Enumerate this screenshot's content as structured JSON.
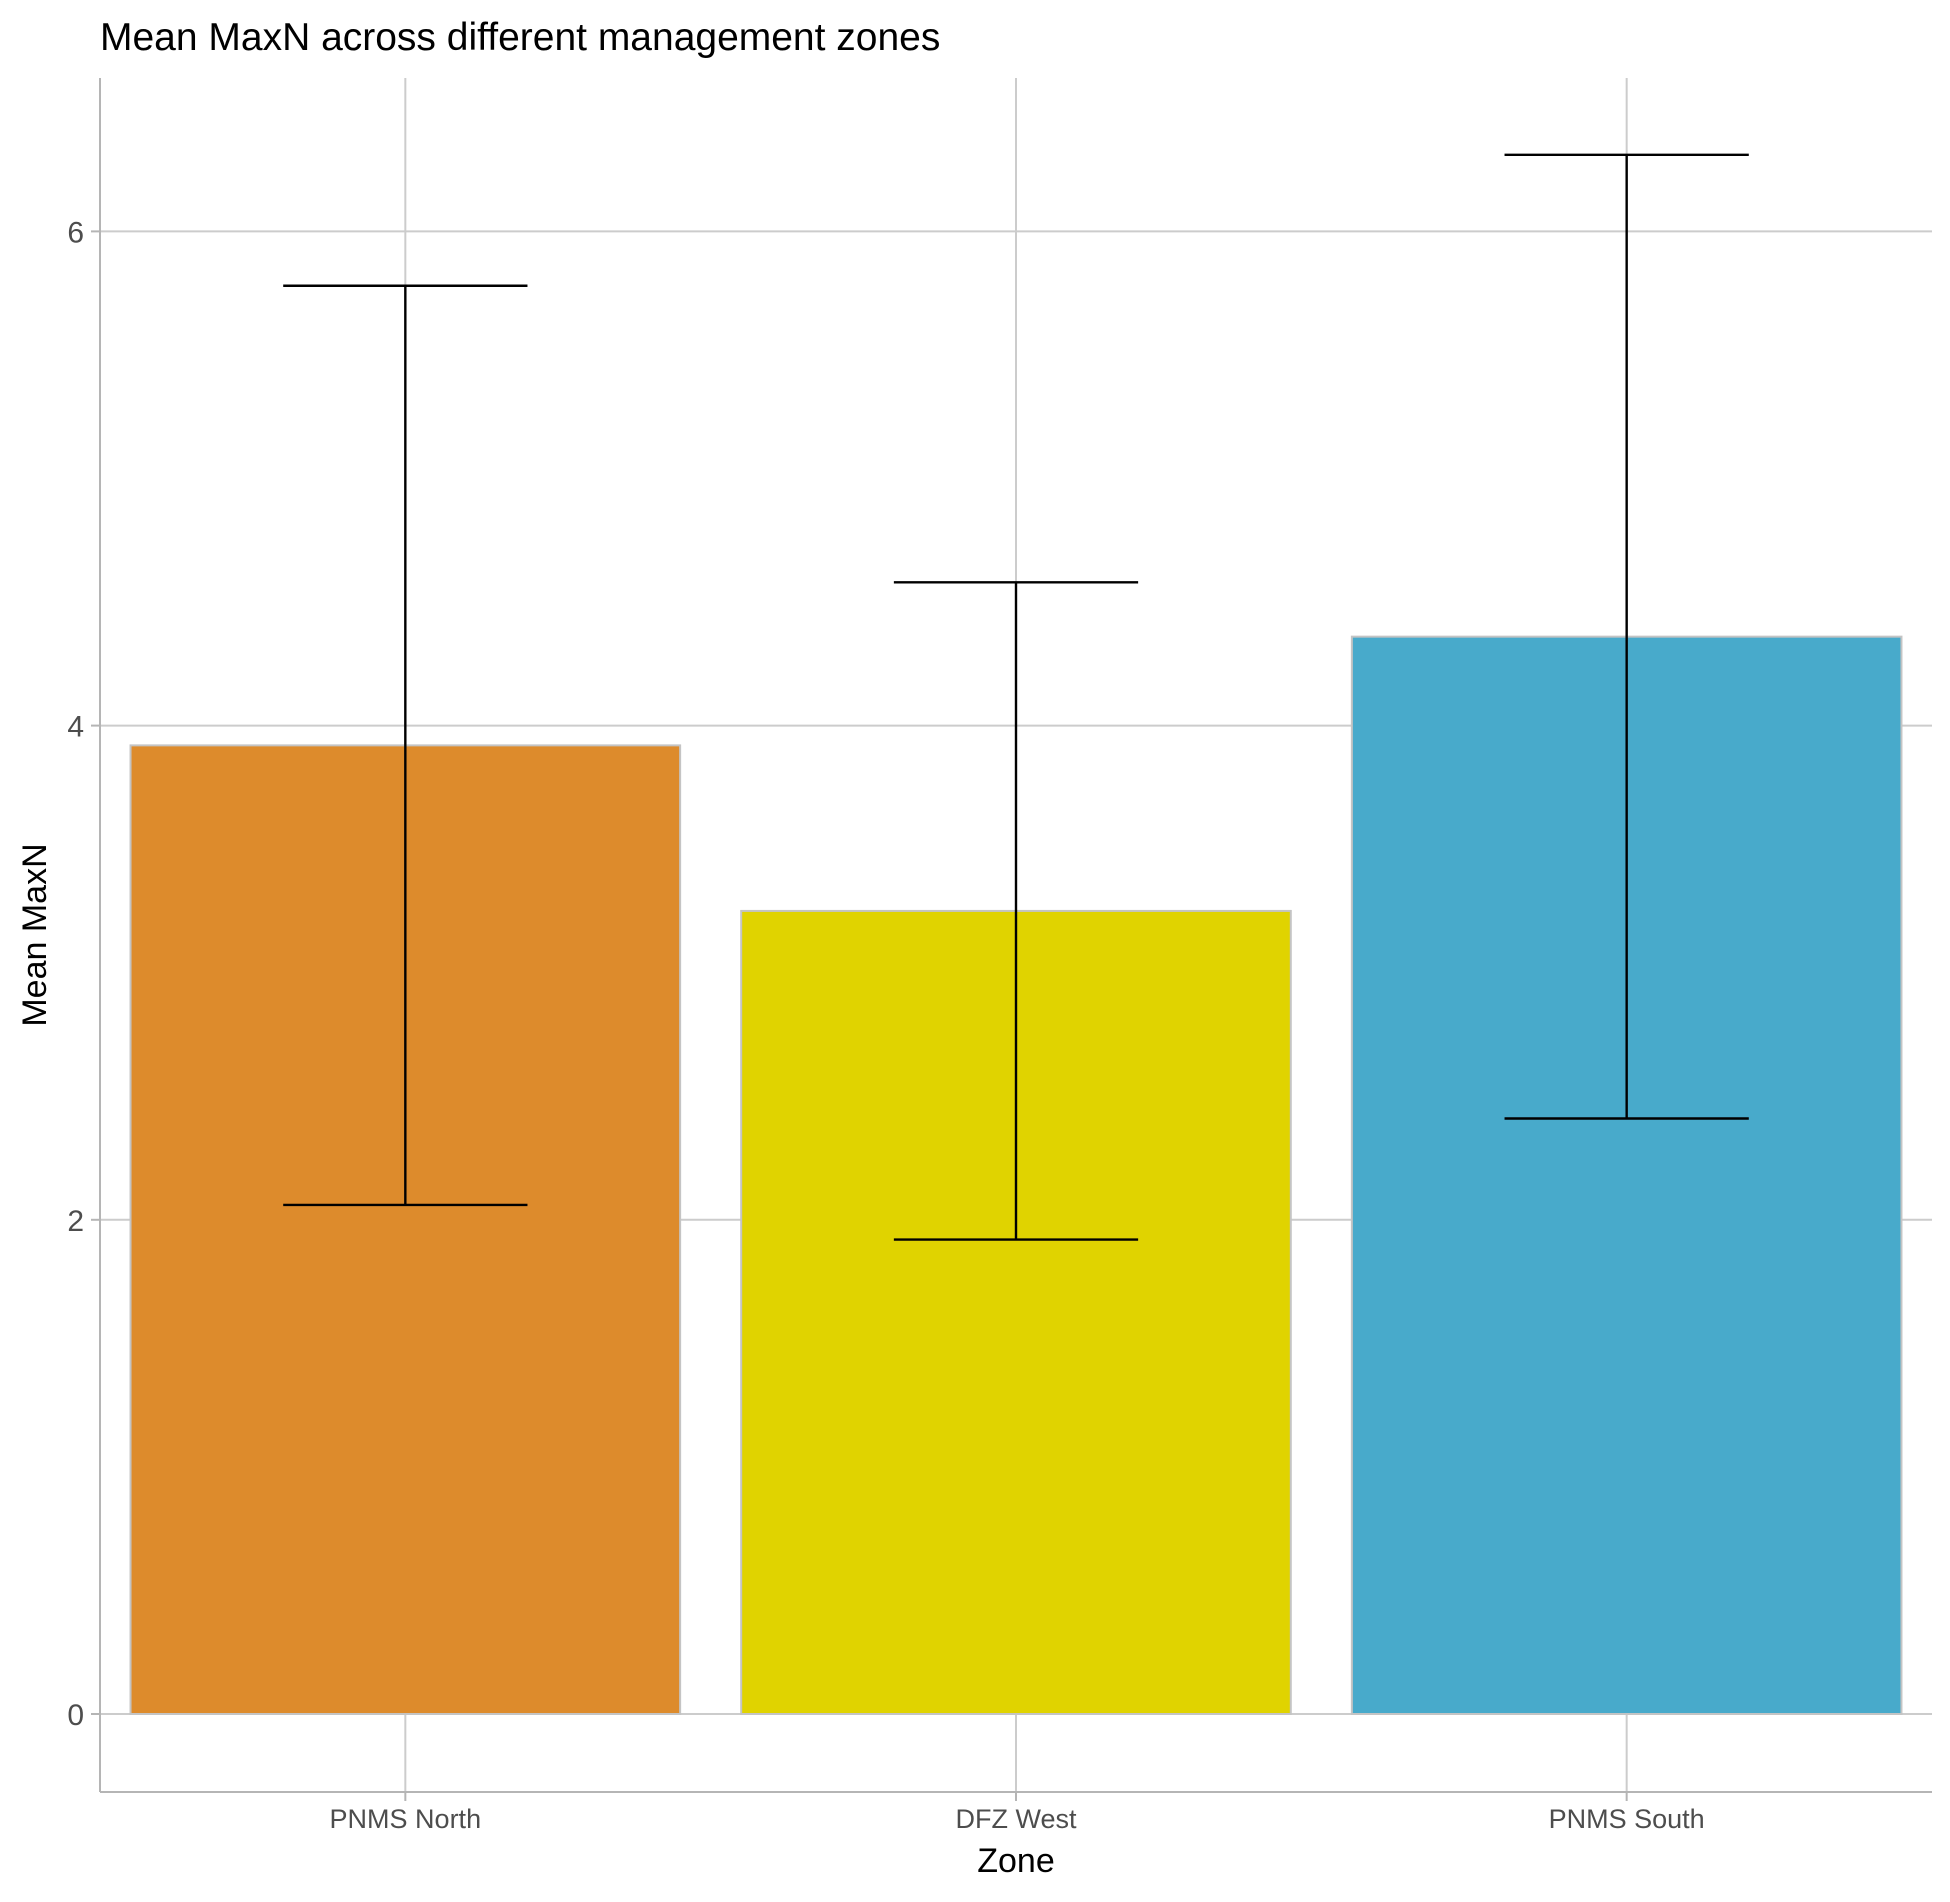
{
  "chart_data": {
    "type": "bar",
    "title": "Mean MaxN across different management zones",
    "xlabel": "Zone",
    "ylabel": "Mean MaxN",
    "categories": [
      "PNMS North",
      "DFZ West",
      "PNMS South"
    ],
    "values": [
      3.92,
      3.25,
      4.36
    ],
    "error_bars": {
      "lower": [
        2.06,
        1.92,
        2.41
      ],
      "upper": [
        5.78,
        4.58,
        6.31
      ]
    },
    "bar_colors": [
      "#dd8b2c",
      "#e0d300",
      "#48aacb"
    ],
    "bar_outline_color": "#c4c4c4",
    "error_bar_color": "#000000",
    "yticks": [
      0,
      2,
      4,
      6
    ],
    "ytick_labels": [
      "0",
      "2",
      "4",
      "6"
    ],
    "ylim": [
      -0.32,
      6.63
    ],
    "grid": true,
    "grid_color": "#cccccc",
    "legend": "none"
  }
}
